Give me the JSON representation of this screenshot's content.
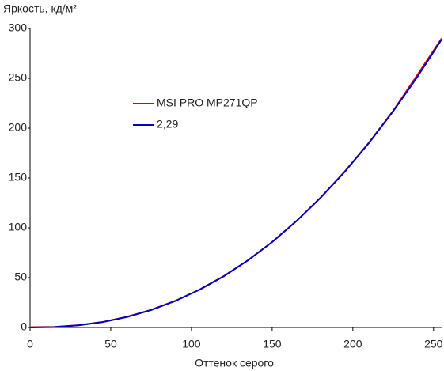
{
  "chart_data": {
    "type": "line",
    "y_label": "Яркость, кд/м²",
    "x_label": "Оттенок серого",
    "x": [
      0,
      15,
      30,
      45,
      60,
      75,
      90,
      105,
      120,
      135,
      150,
      165,
      180,
      195,
      210,
      225,
      240,
      255
    ],
    "series": [
      {
        "name": "MSI PRO MP271QP",
        "color": "#e00000",
        "values": [
          0.3,
          0.6,
          2.3,
          5.6,
          10.7,
          17.7,
          26.8,
          38.0,
          51.5,
          67.4,
          85.8,
          106.7,
          130.3,
          156.5,
          185.5,
          217.5,
          253.5,
          290
        ]
      },
      {
        "name": "2,29",
        "color": "#0000c0",
        "values": [
          0,
          0.4,
          2.2,
          5.4,
          10.5,
          17.5,
          26.6,
          37.9,
          51.4,
          67.4,
          85.7,
          106.7,
          130.2,
          156.3,
          185.2,
          217.0,
          251.5,
          289
        ]
      }
    ],
    "xlim": [
      0,
      255
    ],
    "xticks": [
      0,
      50,
      100,
      150,
      200,
      250
    ],
    "ylim": [
      0,
      300
    ],
    "yticks": [
      0,
      50,
      100,
      150,
      200,
      250,
      300
    ],
    "grid": false
  }
}
